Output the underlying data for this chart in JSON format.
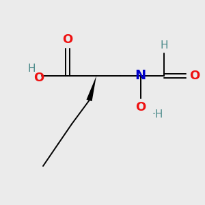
{
  "background_color": "#ebebeb",
  "bond_color": "#000000",
  "atom_colors": {
    "O": "#ee1111",
    "N": "#0000cc",
    "H": "#4a8a8a",
    "C": "#000000"
  },
  "font_size_O": 13,
  "font_size_N": 14,
  "font_size_H": 11,
  "figsize": [
    3.0,
    3.0
  ],
  "dpi": 100,
  "lw": 1.4
}
